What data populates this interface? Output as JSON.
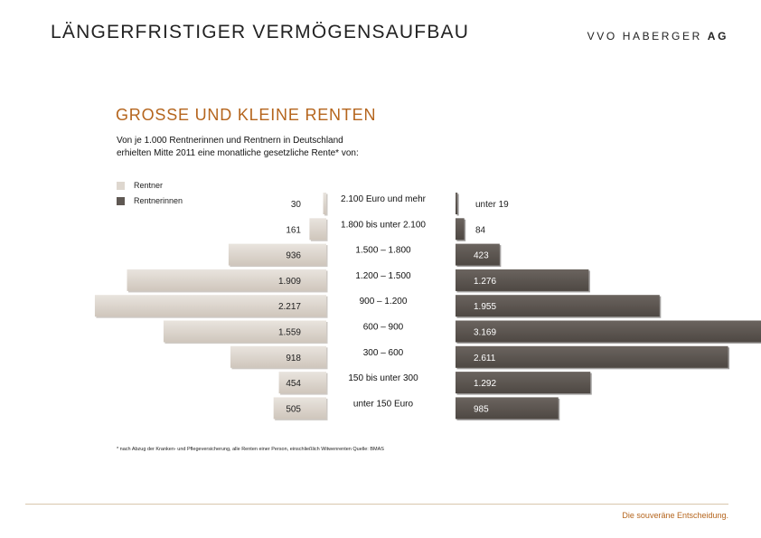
{
  "header": {
    "title": "LÄNGERFRISTIGER VERMÖGENSAUFBAU",
    "logo_light": "VVO HABERGER",
    "logo_bold": "AG"
  },
  "intro_text": "Von je 1.000 Rentnerinnen und Rentnern in Deutschland erhielten Mitte 2011 eine monatliche gesetzliche Rente* von:",
  "footnote": "* nach Abzug der Kranken- und Pflegeversicherung, alle Renten einer Person, einschließlich Witwenrenten   Quelle: BMAS",
  "footer": {
    "slogan": "Die souveräne Entscheidung."
  },
  "colors": {
    "rentner": "#ded7cf",
    "rentnerinnen": "#5f5853",
    "accent": "#b5651d"
  },
  "chart_data": {
    "type": "bar",
    "orientation": "horizontal-population-pyramid",
    "title": "GROSSE UND KLEINE RENTEN",
    "categories": [
      "2.100 Euro und mehr",
      "1.800 bis unter 2.100",
      "1.500 – 1.800",
      "1.200 – 1.500",
      "900 – 1.200",
      "600 – 900",
      "300 – 600",
      "150 bis unter 300",
      "unter 150 Euro"
    ],
    "series": [
      {
        "name": "Rentner",
        "values": [
          30,
          161,
          936,
          1909,
          2217,
          1559,
          918,
          454,
          505
        ],
        "labels": [
          "30",
          "161",
          "936",
          "1.909",
          "2.217",
          "1.559",
          "918",
          "454",
          "505"
        ]
      },
      {
        "name": "Rentnerinnen",
        "values": [
          19,
          84,
          423,
          1276,
          1955,
          3169,
          2611,
          1292,
          985
        ],
        "labels": [
          "unter 19",
          "84",
          "423",
          "1.276",
          "1.955",
          "3.169",
          "2.611",
          "1.292",
          "985"
        ]
      }
    ],
    "legend_position": "top-left"
  }
}
